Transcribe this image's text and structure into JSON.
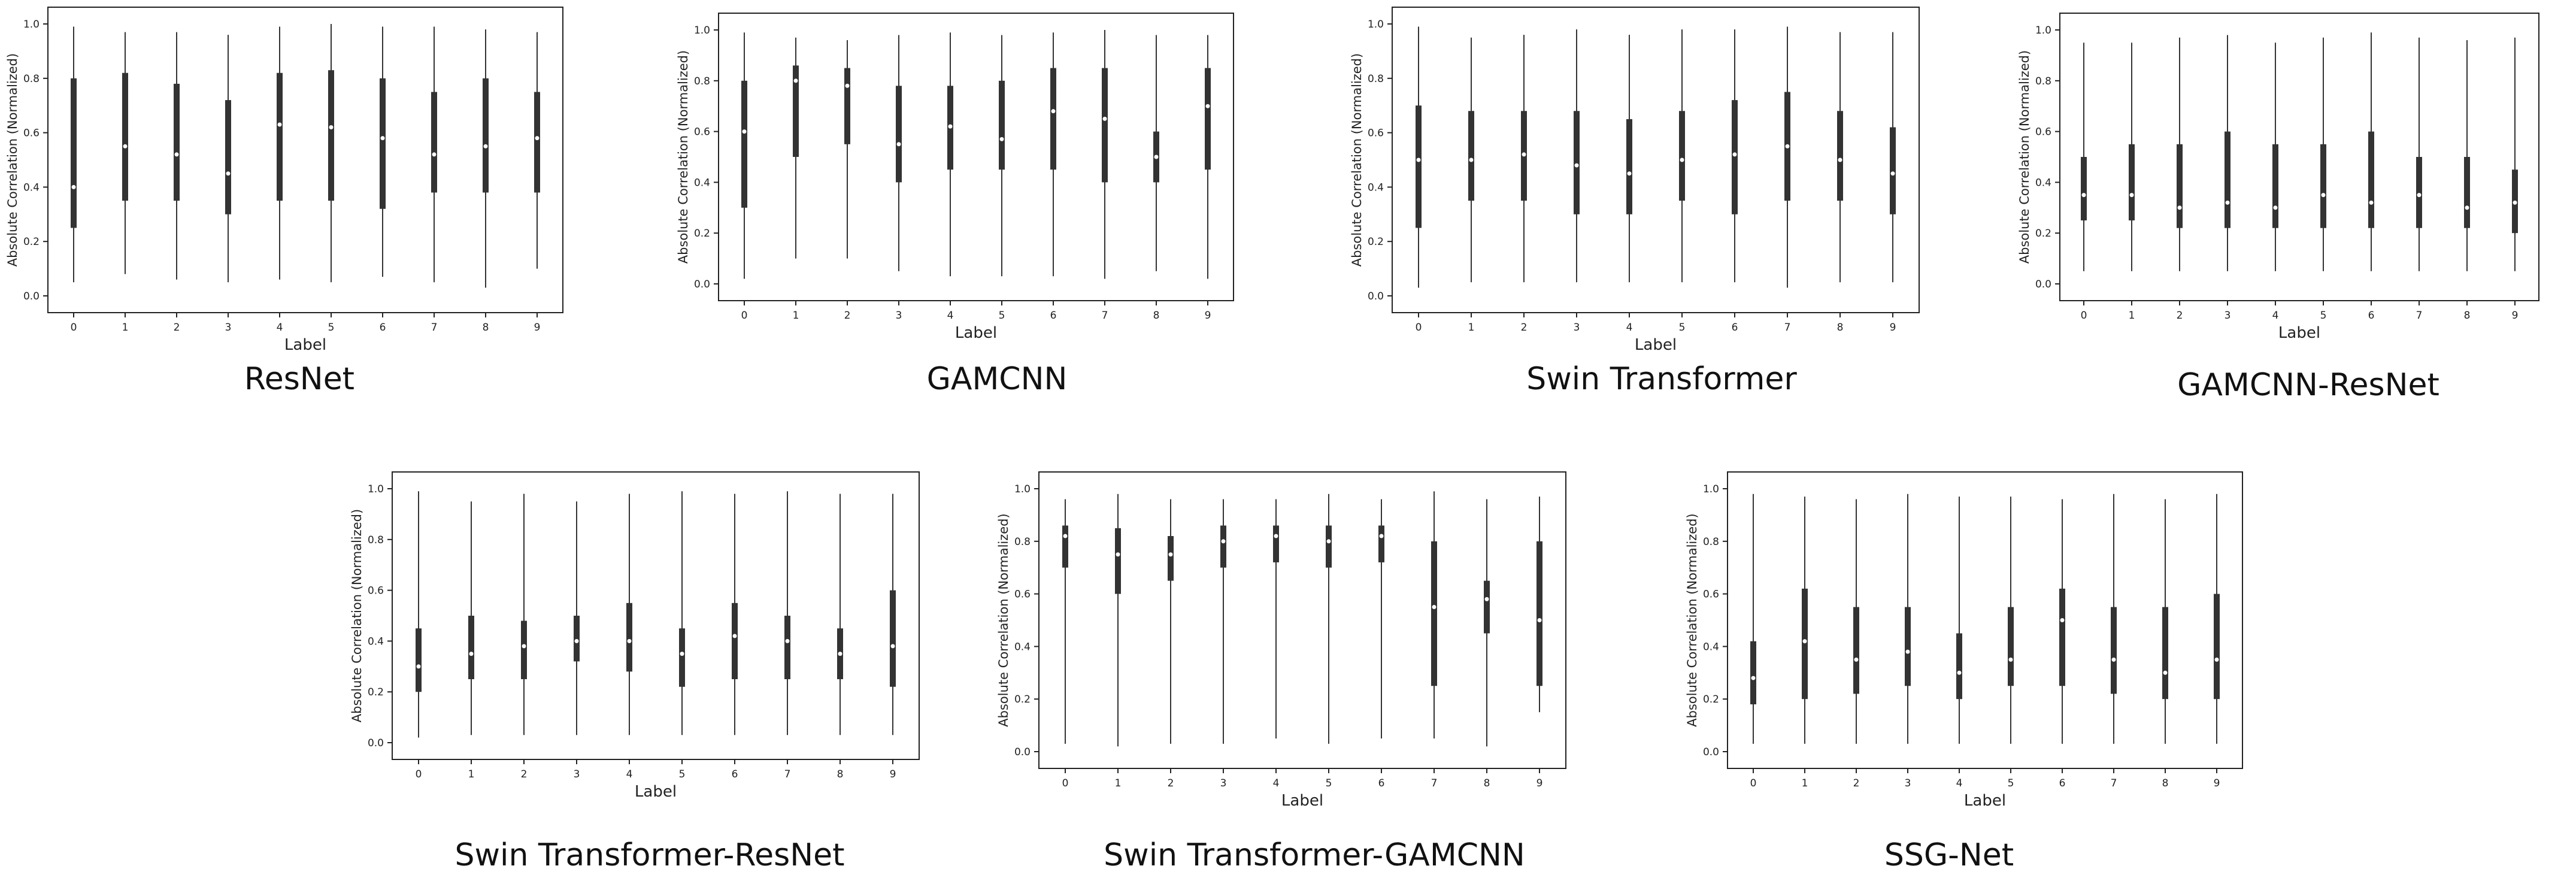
{
  "charts": {
    "xlabel": "Label",
    "ylabel": "Absolute Correlation (Normalized)",
    "yticks": [
      "0.0",
      "0.2",
      "0.4",
      "0.6",
      "0.8",
      "1.0"
    ],
    "palette": [
      "#1f77b4",
      "#ff7f0e",
      "#2ca02c",
      "#d62728",
      "#9467bd",
      "#8c564b",
      "#e377c2",
      "#7f7f7f",
      "#bcbd22",
      "#17becf"
    ]
  },
  "chart_data": [
    {
      "type": "violin",
      "title": "ResNet",
      "xlabel": "Label",
      "ylabel": "Absolute Correlation (Normalized)",
      "categories": [
        "0",
        "1",
        "2",
        "3",
        "4",
        "5",
        "6",
        "7",
        "8",
        "9"
      ],
      "ylim": [
        0,
        1
      ],
      "median": [
        0.4,
        0.55,
        0.52,
        0.45,
        0.63,
        0.62,
        0.58,
        0.52,
        0.55,
        0.58
      ],
      "q1": [
        0.25,
        0.35,
        0.35,
        0.3,
        0.35,
        0.35,
        0.32,
        0.38,
        0.38,
        0.38
      ],
      "q3": [
        0.8,
        0.82,
        0.78,
        0.72,
        0.82,
        0.83,
        0.8,
        0.75,
        0.8,
        0.75
      ],
      "min": [
        0.05,
        0.08,
        0.06,
        0.05,
        0.06,
        0.05,
        0.07,
        0.05,
        0.03,
        0.1
      ],
      "max": [
        0.99,
        0.97,
        0.97,
        0.96,
        0.99,
        1.0,
        0.99,
        0.99,
        0.98,
        0.97
      ]
    },
    {
      "type": "violin",
      "title": "GAMCNN",
      "xlabel": "Label",
      "ylabel": "Absolute Correlation (Normalized)",
      "categories": [
        "0",
        "1",
        "2",
        "3",
        "4",
        "5",
        "6",
        "7",
        "8",
        "9"
      ],
      "ylim": [
        0,
        1
      ],
      "median": [
        0.6,
        0.8,
        0.78,
        0.55,
        0.62,
        0.57,
        0.68,
        0.65,
        0.5,
        0.7
      ],
      "q1": [
        0.3,
        0.5,
        0.55,
        0.4,
        0.45,
        0.45,
        0.45,
        0.4,
        0.4,
        0.45
      ],
      "q3": [
        0.8,
        0.86,
        0.85,
        0.78,
        0.78,
        0.8,
        0.85,
        0.85,
        0.6,
        0.85
      ],
      "min": [
        0.02,
        0.1,
        0.1,
        0.05,
        0.03,
        0.03,
        0.03,
        0.02,
        0.05,
        0.02
      ],
      "max": [
        0.99,
        0.97,
        0.96,
        0.98,
        0.99,
        0.98,
        0.99,
        1.0,
        0.98,
        0.98
      ]
    },
    {
      "type": "violin",
      "title": "Swin Transformer",
      "xlabel": "Label",
      "ylabel": "Absolute Correlation (Normalized)",
      "categories": [
        "0",
        "1",
        "2",
        "3",
        "4",
        "5",
        "6",
        "7",
        "8",
        "9"
      ],
      "ylim": [
        0,
        1
      ],
      "median": [
        0.5,
        0.5,
        0.52,
        0.48,
        0.45,
        0.5,
        0.52,
        0.55,
        0.5,
        0.45
      ],
      "q1": [
        0.25,
        0.35,
        0.35,
        0.3,
        0.3,
        0.35,
        0.3,
        0.35,
        0.35,
        0.3
      ],
      "q3": [
        0.7,
        0.68,
        0.68,
        0.68,
        0.65,
        0.68,
        0.72,
        0.75,
        0.68,
        0.62
      ],
      "min": [
        0.03,
        0.05,
        0.05,
        0.05,
        0.05,
        0.05,
        0.05,
        0.03,
        0.05,
        0.05
      ],
      "max": [
        0.99,
        0.95,
        0.96,
        0.98,
        0.96,
        0.98,
        0.98,
        0.99,
        0.97,
        0.97
      ]
    },
    {
      "type": "violin",
      "title": "GAMCNN-ResNet",
      "xlabel": "Label",
      "ylabel": "Absolute Correlation (Normalized)",
      "categories": [
        "0",
        "1",
        "2",
        "3",
        "4",
        "5",
        "6",
        "7",
        "8",
        "9"
      ],
      "ylim": [
        0,
        1
      ],
      "median": [
        0.35,
        0.35,
        0.3,
        0.32,
        0.3,
        0.35,
        0.32,
        0.35,
        0.3,
        0.32
      ],
      "q1": [
        0.25,
        0.25,
        0.22,
        0.22,
        0.22,
        0.22,
        0.22,
        0.22,
        0.22,
        0.2
      ],
      "q3": [
        0.5,
        0.55,
        0.55,
        0.6,
        0.55,
        0.55,
        0.6,
        0.5,
        0.5,
        0.45
      ],
      "min": [
        0.05,
        0.05,
        0.05,
        0.05,
        0.05,
        0.05,
        0.05,
        0.05,
        0.05,
        0.05
      ],
      "max": [
        0.95,
        0.95,
        0.97,
        0.98,
        0.95,
        0.97,
        0.99,
        0.97,
        0.96,
        0.97
      ]
    },
    {
      "type": "violin",
      "title": "Swin Transformer-ResNet",
      "xlabel": "Label",
      "ylabel": "Absolute Correlation (Normalized)",
      "categories": [
        "0",
        "1",
        "2",
        "3",
        "4",
        "5",
        "6",
        "7",
        "8",
        "9"
      ],
      "ylim": [
        0,
        1
      ],
      "median": [
        0.3,
        0.35,
        0.38,
        0.4,
        0.4,
        0.35,
        0.42,
        0.4,
        0.35,
        0.38
      ],
      "q1": [
        0.2,
        0.25,
        0.25,
        0.32,
        0.28,
        0.22,
        0.25,
        0.25,
        0.25,
        0.22
      ],
      "q3": [
        0.45,
        0.5,
        0.48,
        0.5,
        0.55,
        0.45,
        0.55,
        0.5,
        0.45,
        0.6
      ],
      "min": [
        0.02,
        0.03,
        0.03,
        0.03,
        0.03,
        0.03,
        0.03,
        0.03,
        0.03,
        0.03
      ],
      "max": [
        0.99,
        0.95,
        0.98,
        0.95,
        0.98,
        0.99,
        0.98,
        0.99,
        0.98,
        0.98
      ]
    },
    {
      "type": "violin",
      "title": "Swin Transformer-GAMCNN",
      "xlabel": "Label",
      "ylabel": "Absolute Correlation (Normalized)",
      "categories": [
        "0",
        "1",
        "2",
        "3",
        "4",
        "5",
        "6",
        "7",
        "8",
        "9"
      ],
      "ylim": [
        0,
        1
      ],
      "median": [
        0.82,
        0.75,
        0.75,
        0.8,
        0.82,
        0.8,
        0.82,
        0.55,
        0.58,
        0.5
      ],
      "q1": [
        0.7,
        0.6,
        0.65,
        0.7,
        0.72,
        0.7,
        0.72,
        0.25,
        0.45,
        0.25
      ],
      "q3": [
        0.86,
        0.85,
        0.82,
        0.86,
        0.86,
        0.86,
        0.86,
        0.8,
        0.65,
        0.8
      ],
      "min": [
        0.03,
        0.02,
        0.03,
        0.03,
        0.05,
        0.03,
        0.05,
        0.05,
        0.02,
        0.15
      ],
      "max": [
        0.96,
        0.98,
        0.96,
        0.96,
        0.96,
        0.98,
        0.96,
        0.99,
        0.96,
        0.97
      ]
    },
    {
      "type": "violin",
      "title": "SSG-Net",
      "xlabel": "Label",
      "ylabel": "Absolute Correlation (Normalized)",
      "categories": [
        "0",
        "1",
        "2",
        "3",
        "4",
        "5",
        "6",
        "7",
        "8",
        "9"
      ],
      "ylim": [
        0,
        1
      ],
      "median": [
        0.28,
        0.42,
        0.35,
        0.38,
        0.3,
        0.35,
        0.5,
        0.35,
        0.3,
        0.35
      ],
      "q1": [
        0.18,
        0.2,
        0.22,
        0.25,
        0.2,
        0.25,
        0.25,
        0.22,
        0.2,
        0.2
      ],
      "q3": [
        0.42,
        0.62,
        0.55,
        0.55,
        0.45,
        0.55,
        0.62,
        0.55,
        0.55,
        0.6
      ],
      "min": [
        0.03,
        0.03,
        0.03,
        0.03,
        0.03,
        0.03,
        0.03,
        0.03,
        0.03,
        0.03
      ],
      "max": [
        0.98,
        0.97,
        0.96,
        0.98,
        0.97,
        0.97,
        0.96,
        0.98,
        0.96,
        0.98
      ]
    }
  ]
}
